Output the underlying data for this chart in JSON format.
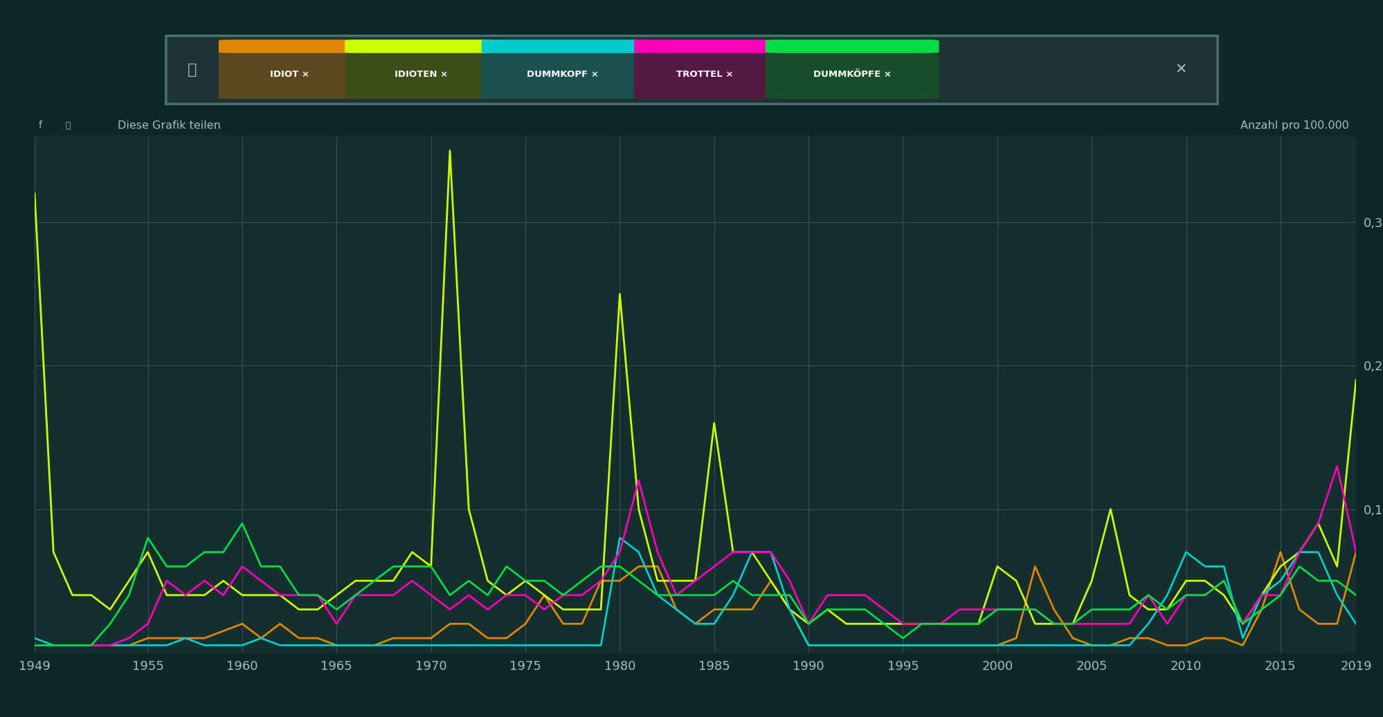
{
  "bg_color": "#0d2828",
  "plot_bg_color": "#152e2e",
  "years": [
    1949,
    1950,
    1951,
    1952,
    1953,
    1954,
    1955,
    1956,
    1957,
    1958,
    1959,
    1960,
    1961,
    1962,
    1963,
    1964,
    1965,
    1966,
    1967,
    1968,
    1969,
    1970,
    1971,
    1972,
    1973,
    1974,
    1975,
    1976,
    1977,
    1978,
    1979,
    1980,
    1981,
    1982,
    1983,
    1984,
    1985,
    1986,
    1987,
    1988,
    1989,
    1990,
    1991,
    1992,
    1993,
    1994,
    1995,
    1996,
    1997,
    1998,
    1999,
    2000,
    2001,
    2002,
    2003,
    2004,
    2005,
    2006,
    2007,
    2008,
    2009,
    2010,
    2011,
    2012,
    2013,
    2014,
    2015,
    2016,
    2017,
    2018,
    2019
  ],
  "series": {
    "IDIOT": {
      "color": "#dd8800",
      "tag_top": "#dd8800",
      "tag_body": "#5a4a2a",
      "values": [
        0.005,
        0.005,
        0.005,
        0.005,
        0.005,
        0.005,
        0.01,
        0.01,
        0.01,
        0.01,
        0.015,
        0.02,
        0.01,
        0.02,
        0.01,
        0.01,
        0.005,
        0.005,
        0.005,
        0.01,
        0.01,
        0.01,
        0.02,
        0.02,
        0.01,
        0.01,
        0.02,
        0.04,
        0.02,
        0.02,
        0.05,
        0.05,
        0.06,
        0.06,
        0.03,
        0.02,
        0.03,
        0.03,
        0.03,
        0.05,
        0.03,
        0.005,
        0.005,
        0.005,
        0.005,
        0.005,
        0.005,
        0.005,
        0.005,
        0.005,
        0.005,
        0.005,
        0.01,
        0.06,
        0.03,
        0.01,
        0.005,
        0.005,
        0.01,
        0.01,
        0.005,
        0.005,
        0.01,
        0.01,
        0.005,
        0.03,
        0.07,
        0.03,
        0.02,
        0.02,
        0.07
      ]
    },
    "IDIOTEN": {
      "color": "#ccff00",
      "tag_top": "#ccff00",
      "tag_body": "#4a5a20",
      "values": [
        0.32,
        0.07,
        0.04,
        0.04,
        0.03,
        0.05,
        0.07,
        0.04,
        0.04,
        0.04,
        0.05,
        0.04,
        0.04,
        0.04,
        0.03,
        0.03,
        0.04,
        0.05,
        0.05,
        0.05,
        0.07,
        0.06,
        0.35,
        0.1,
        0.05,
        0.04,
        0.05,
        0.04,
        0.03,
        0.03,
        0.03,
        0.25,
        0.1,
        0.05,
        0.05,
        0.05,
        0.16,
        0.07,
        0.07,
        0.05,
        0.03,
        0.02,
        0.03,
        0.02,
        0.02,
        0.02,
        0.02,
        0.02,
        0.02,
        0.02,
        0.02,
        0.06,
        0.05,
        0.02,
        0.02,
        0.02,
        0.05,
        0.1,
        0.04,
        0.03,
        0.03,
        0.05,
        0.05,
        0.04,
        0.02,
        0.04,
        0.06,
        0.07,
        0.09,
        0.06,
        0.19
      ]
    },
    "DUMMKOPF": {
      "color": "#00cccc",
      "tag_top": "#00cccc",
      "tag_body": "#1a5555",
      "values": [
        0.01,
        0.005,
        0.005,
        0.005,
        0.005,
        0.005,
        0.005,
        0.005,
        0.01,
        0.005,
        0.005,
        0.005,
        0.01,
        0.005,
        0.005,
        0.005,
        0.005,
        0.005,
        0.005,
        0.005,
        0.005,
        0.005,
        0.005,
        0.005,
        0.005,
        0.005,
        0.005,
        0.005,
        0.005,
        0.005,
        0.005,
        0.08,
        0.07,
        0.04,
        0.03,
        0.02,
        0.02,
        0.04,
        0.07,
        0.07,
        0.03,
        0.005,
        0.005,
        0.005,
        0.005,
        0.005,
        0.005,
        0.005,
        0.005,
        0.005,
        0.005,
        0.005,
        0.005,
        0.005,
        0.005,
        0.005,
        0.005,
        0.005,
        0.005,
        0.02,
        0.04,
        0.07,
        0.06,
        0.06,
        0.01,
        0.04,
        0.05,
        0.07,
        0.07,
        0.04,
        0.02
      ]
    },
    "TROTTEL": {
      "color": "#ff00bb",
      "tag_top": "#ff00bb",
      "tag_body": "#5a1a4a",
      "values": [
        0.005,
        0.005,
        0.005,
        0.005,
        0.005,
        0.01,
        0.02,
        0.05,
        0.04,
        0.05,
        0.04,
        0.06,
        0.05,
        0.04,
        0.04,
        0.04,
        0.02,
        0.04,
        0.04,
        0.04,
        0.05,
        0.04,
        0.03,
        0.04,
        0.03,
        0.04,
        0.04,
        0.03,
        0.04,
        0.04,
        0.05,
        0.07,
        0.12,
        0.07,
        0.04,
        0.05,
        0.06,
        0.07,
        0.07,
        0.07,
        0.05,
        0.02,
        0.04,
        0.04,
        0.04,
        0.03,
        0.02,
        0.02,
        0.02,
        0.03,
        0.03,
        0.03,
        0.03,
        0.03,
        0.02,
        0.02,
        0.02,
        0.02,
        0.02,
        0.04,
        0.02,
        0.04,
        0.04,
        0.05,
        0.02,
        0.04,
        0.04,
        0.07,
        0.09,
        0.13,
        0.07
      ]
    },
    "DUMMKOPFE": {
      "color": "#00dd44",
      "tag_top": "#00dd44",
      "tag_body": "#1a5535",
      "values": [
        0.005,
        0.005,
        0.005,
        0.005,
        0.02,
        0.04,
        0.08,
        0.06,
        0.06,
        0.07,
        0.07,
        0.09,
        0.06,
        0.06,
        0.04,
        0.04,
        0.03,
        0.04,
        0.05,
        0.06,
        0.06,
        0.06,
        0.04,
        0.05,
        0.04,
        0.06,
        0.05,
        0.05,
        0.04,
        0.05,
        0.06,
        0.06,
        0.05,
        0.04,
        0.04,
        0.04,
        0.04,
        0.05,
        0.04,
        0.04,
        0.04,
        0.02,
        0.03,
        0.03,
        0.03,
        0.02,
        0.01,
        0.02,
        0.02,
        0.02,
        0.02,
        0.03,
        0.03,
        0.03,
        0.02,
        0.02,
        0.03,
        0.03,
        0.03,
        0.04,
        0.03,
        0.04,
        0.04,
        0.05,
        0.02,
        0.03,
        0.04,
        0.06,
        0.05,
        0.05,
        0.04
      ]
    }
  },
  "xticks": [
    1949,
    1955,
    1960,
    1965,
    1970,
    1975,
    1980,
    1985,
    1990,
    1995,
    2000,
    2005,
    2010,
    2015,
    2019
  ],
  "yticks": [
    0.1,
    0.2,
    0.3
  ],
  "ylim": [
    0,
    0.36
  ],
  "tag_labels": [
    "IDIOT",
    "IDIOTEN",
    "DUMMKOPF",
    "TROTTEL",
    "DUMMKÖPFE"
  ],
  "tag_top_colors": [
    "#dd8800",
    "#ccff00",
    "#00cccc",
    "#ff00bb",
    "#00dd44"
  ],
  "tag_body_colors": [
    "#5a4820",
    "#3d4d1a",
    "#1a5050",
    "#551a44",
    "#1a4d2a"
  ],
  "search_bg": "#1e3333",
  "search_border": "#4a7070"
}
